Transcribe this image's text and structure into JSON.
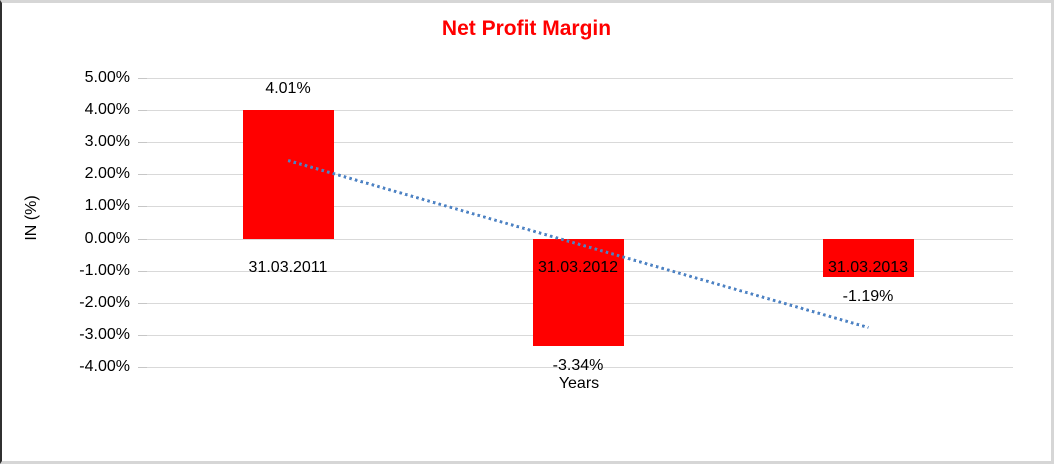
{
  "chart_data": {
    "type": "bar",
    "title": "Net Profit Margin",
    "xlabel": "Years",
    "ylabel": "IN (%)",
    "categories": [
      "31.03.2011",
      "31.03.2012",
      "31.03.2013"
    ],
    "values": [
      4.01,
      -3.34,
      -1.19
    ],
    "value_labels": [
      "4.01%",
      "-3.34%",
      "-1.19%"
    ],
    "ylim": [
      -4,
      5
    ],
    "ytick_labels": [
      "5.00%",
      "4.00%",
      "3.00%",
      "2.00%",
      "1.00%",
      "0.00%",
      "-1.00%",
      "-2.00%",
      "-3.00%",
      "-4.00%"
    ],
    "grid": true,
    "legend": "none",
    "bar_color": "#ff0000",
    "title_color": "#ff0000",
    "gridline_color": "#d9d9d9",
    "trendline": {
      "type": "linear",
      "style": "dotted",
      "color": "#4d82c3",
      "start_value": 2.43,
      "end_value": -2.77
    }
  }
}
